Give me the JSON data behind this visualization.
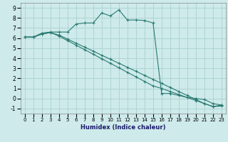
{
  "xlabel": "Humidex (Indice chaleur)",
  "bg_color": "#ceeaea",
  "grid_color": "#add4d4",
  "line_color": "#2a7a72",
  "xlim": [
    -0.5,
    23.5
  ],
  "ylim": [
    -1.5,
    9.5
  ],
  "xticks": [
    0,
    1,
    2,
    3,
    4,
    5,
    6,
    7,
    8,
    9,
    10,
    11,
    12,
    13,
    14,
    15,
    16,
    17,
    18,
    19,
    20,
    21,
    22,
    23
  ],
  "yticks": [
    -1,
    0,
    1,
    2,
    3,
    4,
    5,
    6,
    7,
    8,
    9
  ],
  "series1_x": [
    0,
    1,
    2,
    3,
    4,
    5,
    6,
    7,
    8,
    9,
    10,
    11,
    12,
    13,
    14,
    15,
    16,
    17,
    18,
    19,
    20,
    21,
    22,
    23
  ],
  "series1_y": [
    6.1,
    6.1,
    6.5,
    6.6,
    6.6,
    6.6,
    7.4,
    7.5,
    7.5,
    8.5,
    8.2,
    8.8,
    7.8,
    7.8,
    7.75,
    7.5,
    0.5,
    0.5,
    0.3,
    0.1,
    0.0,
    -0.1,
    -0.5,
    -0.65
  ],
  "series2_x": [
    0,
    1,
    2,
    3,
    4,
    5,
    6,
    7,
    8,
    9,
    10,
    11,
    12,
    13,
    14,
    15,
    16,
    17,
    18,
    19,
    20,
    21,
    22,
    23
  ],
  "series2_y": [
    6.1,
    6.1,
    6.4,
    6.55,
    6.3,
    5.9,
    5.5,
    5.1,
    4.7,
    4.3,
    3.9,
    3.5,
    3.1,
    2.7,
    2.3,
    1.9,
    1.5,
    1.1,
    0.7,
    0.3,
    -0.1,
    -0.5,
    -0.8,
    -0.65
  ],
  "series3_x": [
    0,
    1,
    2,
    3,
    4,
    5,
    6,
    7,
    8,
    9,
    10,
    11,
    12,
    13,
    14,
    15,
    16,
    17,
    18,
    19,
    20,
    21,
    22,
    23
  ],
  "series3_y": [
    6.1,
    6.1,
    6.4,
    6.55,
    6.2,
    5.75,
    5.3,
    4.85,
    4.4,
    3.95,
    3.5,
    3.05,
    2.6,
    2.15,
    1.7,
    1.25,
    1.0,
    0.7,
    0.4,
    0.1,
    -0.2,
    -0.5,
    -0.8,
    -0.75
  ]
}
